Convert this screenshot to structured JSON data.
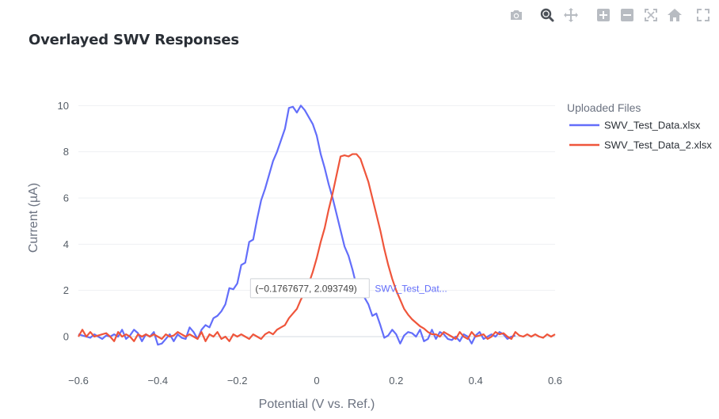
{
  "toolbar": {
    "buttons": [
      {
        "name": "camera-icon",
        "label": "Download plot as a png"
      },
      {
        "name": "zoom-icon",
        "label": "Zoom"
      },
      {
        "name": "pan-icon",
        "label": "Pan"
      },
      {
        "name": "zoom-in-icon",
        "label": "Zoom in"
      },
      {
        "name": "zoom-out-icon",
        "label": "Zoom out"
      },
      {
        "name": "autoscale-icon",
        "label": "Autoscale"
      },
      {
        "name": "home-icon",
        "label": "Reset axes"
      },
      {
        "name": "fullscreen-icon",
        "label": "Full screen"
      }
    ],
    "active": "zoom-icon",
    "icon_color": "#b8bcc2",
    "active_color": "#4d5259"
  },
  "chart_data": {
    "type": "line",
    "title": "Overlayed SWV Responses",
    "xlabel": "Potential (V vs. Ref.)",
    "ylabel": "Current (µA)",
    "xlim": [
      -0.6,
      0.6
    ],
    "ylim": [
      -1.2,
      10.8
    ],
    "xticks": [
      -0.6,
      -0.4,
      -0.2,
      0,
      0.2,
      0.4,
      0.6
    ],
    "xtick_labels": [
      "−0.6",
      "−0.4",
      "−0.2",
      "0",
      "0.2",
      "0.4",
      "0.6"
    ],
    "yticks": [
      0,
      2,
      4,
      6,
      8,
      10
    ],
    "ytick_labels": [
      "0",
      "2",
      "4",
      "6",
      "8",
      "10"
    ],
    "grid": true,
    "legend": {
      "title": "Uploaded Files",
      "placement": "top-right"
    },
    "series": [
      {
        "name": "SWV_Test_Data.xlsx",
        "color": "#636efa",
        "x": [
          -0.6,
          -0.59,
          -0.58,
          -0.57,
          -0.56,
          -0.55,
          -0.54,
          -0.53,
          -0.52,
          -0.51,
          -0.5,
          -0.49,
          -0.48,
          -0.47,
          -0.46,
          -0.45,
          -0.44,
          -0.43,
          -0.42,
          -0.41,
          -0.4,
          -0.39,
          -0.38,
          -0.37,
          -0.36,
          -0.35,
          -0.34,
          -0.33,
          -0.32,
          -0.31,
          -0.3,
          -0.29,
          -0.28,
          -0.27,
          -0.26,
          -0.25,
          -0.24,
          -0.23,
          -0.22,
          -0.21,
          -0.2,
          -0.19,
          -0.18,
          -0.17,
          -0.16,
          -0.15,
          -0.14,
          -0.13,
          -0.12,
          -0.11,
          -0.1,
          -0.09,
          -0.08,
          -0.07,
          -0.06,
          -0.05,
          -0.04,
          -0.03,
          -0.02,
          -0.01,
          0,
          0.01,
          0.02,
          0.03,
          0.04,
          0.05,
          0.06,
          0.07,
          0.08,
          0.09,
          0.1,
          0.11,
          0.12,
          0.13,
          0.14,
          0.15,
          0.16,
          0.17,
          0.18,
          0.19,
          0.2,
          0.21,
          0.22,
          0.23,
          0.24,
          0.25,
          0.26,
          0.27,
          0.28,
          0.29,
          0.3,
          0.31,
          0.32,
          0.33,
          0.34,
          0.35,
          0.36,
          0.37,
          0.38,
          0.39,
          0.4,
          0.41,
          0.42,
          0.43,
          0.44,
          0.45,
          0.46,
          0.47,
          0.48,
          0.49,
          0.5
        ],
        "y": [
          0.1,
          0.05,
          0.0,
          -0.05,
          0.1,
          0.0,
          -0.1,
          0.05,
          0.0,
          0.1,
          0.0,
          0.3,
          -0.1,
          0.05,
          0.3,
          0.15,
          -0.2,
          0.1,
          0.0,
          0.2,
          -0.35,
          -0.3,
          -0.1,
          0.1,
          -0.2,
          0.1,
          -0.05,
          -0.1,
          0.4,
          0.2,
          -0.1,
          0.3,
          0.5,
          0.4,
          0.8,
          0.9,
          1.1,
          1.4,
          2.1,
          2.05,
          2.3,
          3.1,
          3.2,
          4.1,
          4.2,
          5.1,
          5.9,
          6.4,
          7.0,
          7.6,
          8.0,
          8.5,
          9.0,
          9.9,
          9.95,
          9.7,
          10.0,
          9.8,
          9.5,
          9.2,
          8.7,
          7.9,
          7.3,
          6.6,
          6.0,
          5.3,
          4.6,
          3.9,
          3.5,
          2.9,
          2.2,
          2.0,
          1.7,
          1.4,
          0.9,
          1.0,
          0.5,
          -0.05,
          0.05,
          0.3,
          0.1,
          -0.3,
          0.05,
          0.2,
          0.15,
          0.0,
          0.3,
          -0.2,
          -0.1,
          0.3,
          -0.1,
          0.2,
          0.1,
          -0.1,
          -0.15,
          0.0,
          -0.2,
          0.1,
          0.0,
          -0.3,
          0.05,
          0.2,
          -0.1,
          0.0,
          0.1,
          0.0,
          0.2,
          0.1,
          -0.1,
          0.0,
          0.05
        ]
      },
      {
        "name": "SWV_Test_Data_2.xlsx",
        "color": "#ef553b",
        "x": [
          -0.6,
          -0.59,
          -0.58,
          -0.57,
          -0.56,
          -0.55,
          -0.54,
          -0.53,
          -0.52,
          -0.51,
          -0.5,
          -0.49,
          -0.48,
          -0.47,
          -0.46,
          -0.45,
          -0.44,
          -0.43,
          -0.42,
          -0.41,
          -0.4,
          -0.39,
          -0.38,
          -0.37,
          -0.36,
          -0.35,
          -0.34,
          -0.33,
          -0.32,
          -0.31,
          -0.3,
          -0.29,
          -0.28,
          -0.27,
          -0.26,
          -0.25,
          -0.24,
          -0.23,
          -0.22,
          -0.21,
          -0.2,
          -0.19,
          -0.18,
          -0.17,
          -0.16,
          -0.15,
          -0.14,
          -0.13,
          -0.12,
          -0.11,
          -0.1,
          -0.09,
          -0.08,
          -0.07,
          -0.06,
          -0.05,
          -0.04,
          -0.03,
          -0.02,
          -0.01,
          0,
          0.01,
          0.02,
          0.03,
          0.04,
          0.05,
          0.06,
          0.07,
          0.08,
          0.09,
          0.1,
          0.11,
          0.12,
          0.13,
          0.14,
          0.15,
          0.16,
          0.17,
          0.18,
          0.19,
          0.2,
          0.21,
          0.22,
          0.23,
          0.24,
          0.25,
          0.26,
          0.27,
          0.28,
          0.29,
          0.3,
          0.31,
          0.32,
          0.33,
          0.34,
          0.35,
          0.36,
          0.37,
          0.38,
          0.39,
          0.4,
          0.41,
          0.42,
          0.43,
          0.44,
          0.45,
          0.46,
          0.47,
          0.48,
          0.49,
          0.5,
          0.51,
          0.52,
          0.53,
          0.54,
          0.55,
          0.56,
          0.57,
          0.58,
          0.59,
          0.6
        ],
        "y": [
          0.0,
          0.3,
          0.0,
          0.2,
          0.0,
          0.05,
          0.1,
          0.15,
          0.0,
          -0.2,
          0.2,
          0.0,
          0.1,
          0.0,
          -0.2,
          0.1,
          0.0,
          0.1,
          0.0,
          0.1,
          0.0,
          -0.1,
          0.1,
          0.0,
          0.05,
          0.2,
          0.1,
          0.0,
          0.1,
          0.0,
          -0.1,
          0.2,
          -0.2,
          0.1,
          0.0,
          0.2,
          -0.1,
          0.0,
          -0.2,
          0.1,
          0.0,
          0.1,
          0.0,
          -0.1,
          0.1,
          0.0,
          -0.1,
          0.1,
          0.2,
          0.1,
          0.3,
          0.4,
          0.5,
          0.8,
          1.0,
          1.2,
          1.6,
          1.9,
          2.3,
          2.8,
          3.4,
          4.1,
          4.7,
          5.5,
          6.2,
          7.0,
          7.8,
          7.85,
          7.8,
          7.9,
          7.9,
          7.7,
          7.2,
          6.7,
          6.0,
          5.3,
          4.6,
          3.8,
          3.1,
          2.5,
          2.0,
          1.6,
          1.2,
          0.95,
          0.75,
          0.6,
          0.45,
          0.35,
          0.2,
          0.1,
          0.1,
          0.0,
          0.2,
          0.1,
          0.0,
          -0.1,
          0.2,
          0.0,
          -0.1,
          0.2,
          0.0,
          0.05,
          0.1,
          -0.1,
          0.0,
          0.2,
          0.1,
          0.15,
          0.0,
          -0.1,
          0.2,
          0.05,
          0.0,
          0.1,
          0.0,
          0.1,
          0.0,
          -0.05,
          0.1,
          0.0,
          0.1
        ]
      }
    ],
    "hover": {
      "x": -0.1767677,
      "y": 2.093749,
      "label": "(−0.1767677, 2.093749)",
      "series_label": "SWV_Test_Dat..."
    }
  }
}
